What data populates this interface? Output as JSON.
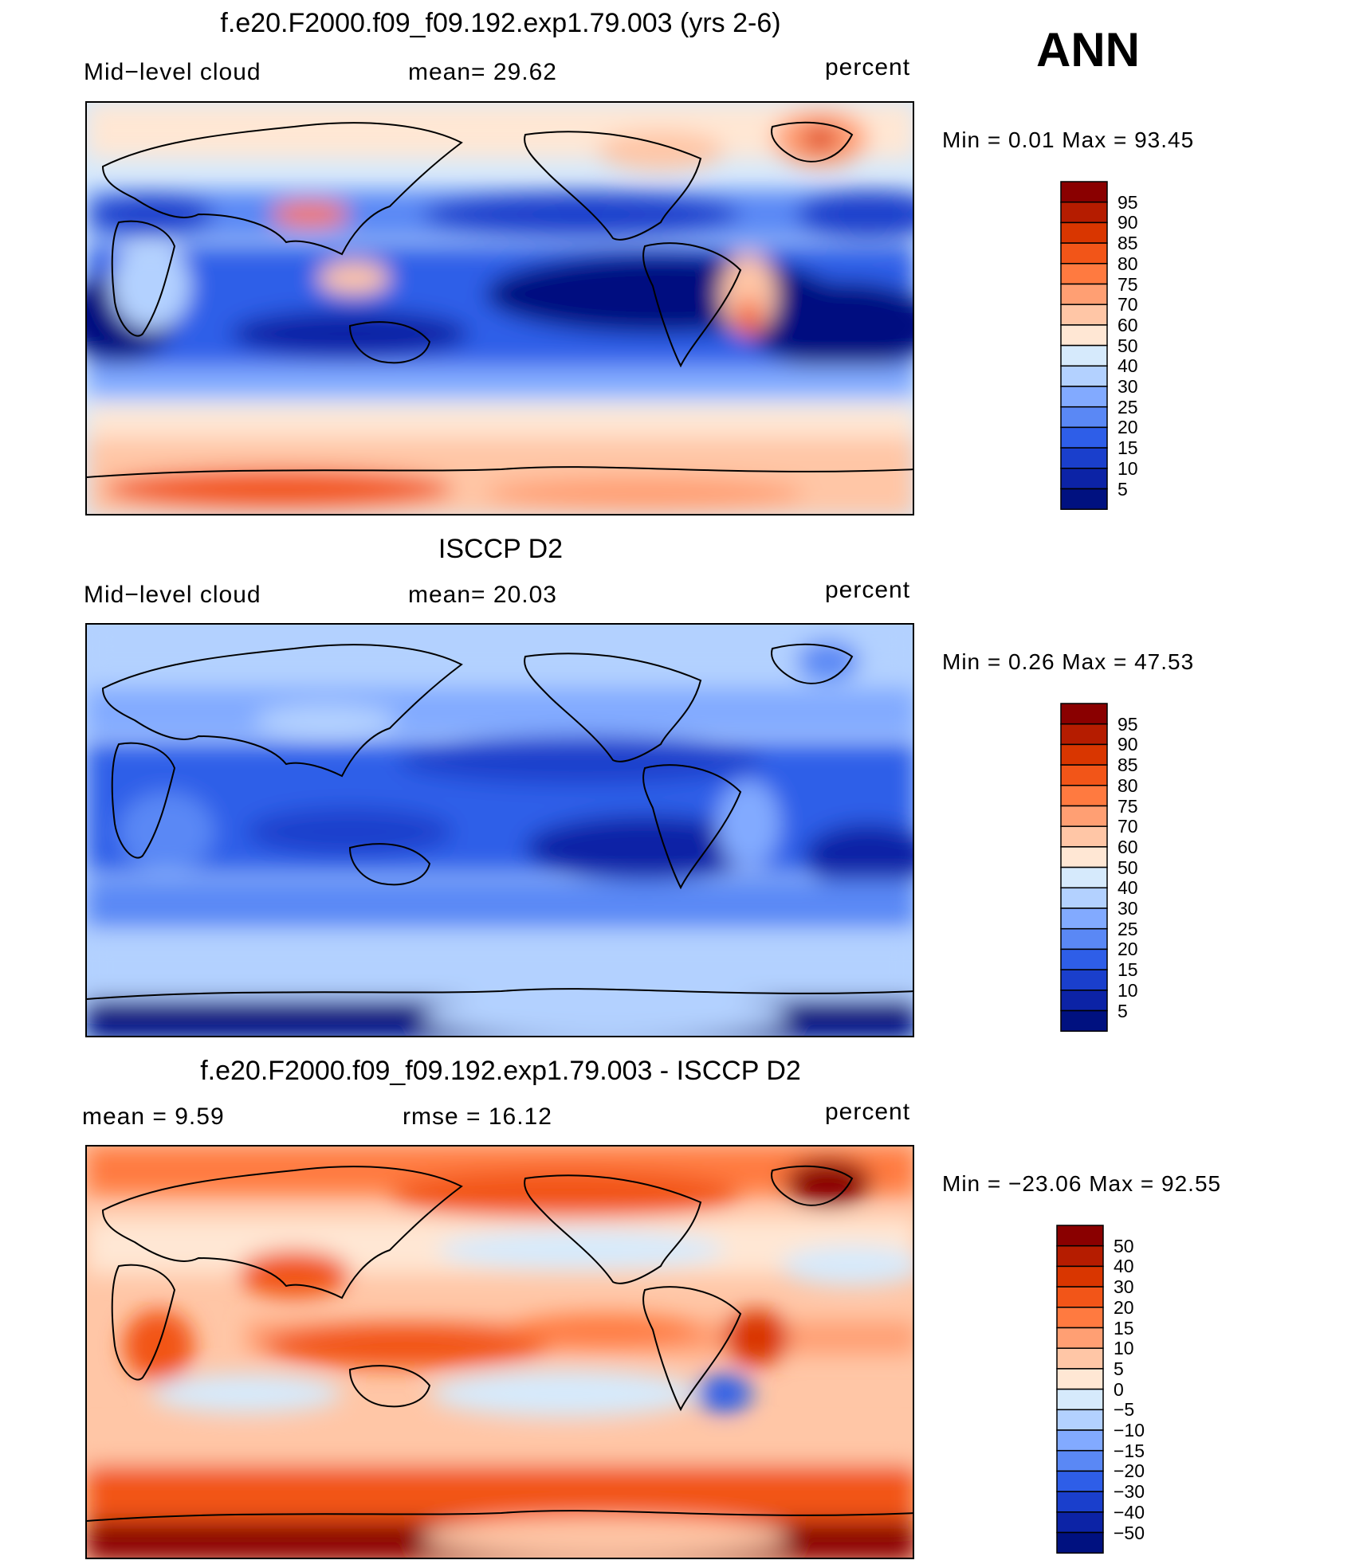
{
  "season_label": "ANN",
  "units_label": "percent",
  "panels": [
    {
      "id": "model",
      "title": "f.e20.F2000.f09_f09.192.exp1.79.003 (yrs 2-6)",
      "left_label": "Mid−level cloud",
      "center_label": "mean=   29.62",
      "units": "percent",
      "minmax": "Min  =    0.01  Max  =   93.45",
      "levels": [
        "95",
        "90",
        "85",
        "80",
        "75",
        "70",
        "60",
        "50",
        "40",
        "30",
        "25",
        "20",
        "15",
        "10",
        "5"
      ],
      "colors": [
        "#8a0000",
        "#b51c00",
        "#d93600",
        "#f25518",
        "#ff7a40",
        "#ff9f73",
        "#ffc6a6",
        "#ffe7d4",
        "#d6eafc",
        "#b3d1ff",
        "#82aaff",
        "#5a88f5",
        "#2e5ee8",
        "#1a3fcc",
        "#0c23a6",
        "#001180"
      ]
    },
    {
      "id": "obs",
      "title": "ISCCP D2",
      "left_label": "Mid−level cloud",
      "center_label": "mean=   20.03",
      "units": "percent",
      "minmax": "Min  =    0.26  Max  =   47.53",
      "levels": [
        "95",
        "90",
        "85",
        "80",
        "75",
        "70",
        "60",
        "50",
        "40",
        "30",
        "25",
        "20",
        "15",
        "10",
        "5"
      ],
      "colors": [
        "#8a0000",
        "#b51c00",
        "#d93600",
        "#f25518",
        "#ff7a40",
        "#ff9f73",
        "#ffc6a6",
        "#ffe7d4",
        "#d6eafc",
        "#b3d1ff",
        "#82aaff",
        "#5a88f5",
        "#2e5ee8",
        "#1a3fcc",
        "#0c23a6",
        "#001180"
      ]
    },
    {
      "id": "diff",
      "title": "f.e20.F2000.f09_f09.192.exp1.79.003 - ISCCP D2",
      "left_label": "mean  =     9.59",
      "center_label": "rmse  =    16.12",
      "units": "percent",
      "minmax": "Min  = −23.06  Max  =    92.55",
      "levels": [
        "50",
        "40",
        "30",
        "20",
        "15",
        "10",
        "5",
        "0",
        "−5",
        "−10",
        "−15",
        "−20",
        "−30",
        "−40",
        "−50"
      ],
      "colors": [
        "#8a0000",
        "#b51c00",
        "#d93600",
        "#f25518",
        "#ff7a40",
        "#ff9f73",
        "#ffc6a6",
        "#ffe7d4",
        "#d6eafc",
        "#b3d1ff",
        "#82aaff",
        "#5a88f5",
        "#2e5ee8",
        "#1a3fcc",
        "#0c23a6",
        "#001180"
      ]
    }
  ]
}
